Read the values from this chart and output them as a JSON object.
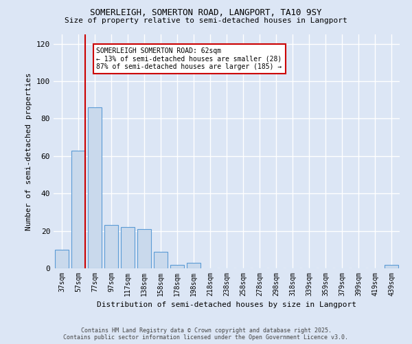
{
  "title_line1": "SOMERLEIGH, SOMERTON ROAD, LANGPORT, TA10 9SY",
  "title_line2": "Size of property relative to semi-detached houses in Langport",
  "xlabel": "Distribution of semi-detached houses by size in Langport",
  "ylabel": "Number of semi-detached properties",
  "categories": [
    "37sqm",
    "57sqm",
    "77sqm",
    "97sqm",
    "117sqm",
    "138sqm",
    "158sqm",
    "178sqm",
    "198sqm",
    "218sqm",
    "238sqm",
    "258sqm",
    "278sqm",
    "298sqm",
    "318sqm",
    "339sqm",
    "359sqm",
    "379sqm",
    "399sqm",
    "419sqm",
    "439sqm"
  ],
  "values": [
    10,
    63,
    86,
    23,
    22,
    21,
    9,
    2,
    3,
    0,
    0,
    0,
    0,
    0,
    0,
    0,
    0,
    0,
    0,
    0,
    2
  ],
  "bar_color": "#c9d9ec",
  "bar_edge_color": "#5b9bd5",
  "highlight_bar_index": 1,
  "highlight_line_color": "#cc0000",
  "ylim": [
    0,
    125
  ],
  "yticks": [
    0,
    20,
    40,
    60,
    80,
    100,
    120
  ],
  "annotation_title": "SOMERLEIGH SOMERTON ROAD: 62sqm",
  "annotation_line1": "← 13% of semi-detached houses are smaller (28)",
  "annotation_line2": "87% of semi-detached houses are larger (185) →",
  "annotation_box_color": "#ffffff",
  "annotation_box_edge": "#cc0000",
  "footer_line1": "Contains HM Land Registry data © Crown copyright and database right 2025.",
  "footer_line2": "Contains public sector information licensed under the Open Government Licence v3.0.",
  "bg_color": "#dce6f5",
  "plot_bg_color": "#dce6f5",
  "grid_color": "#ffffff"
}
